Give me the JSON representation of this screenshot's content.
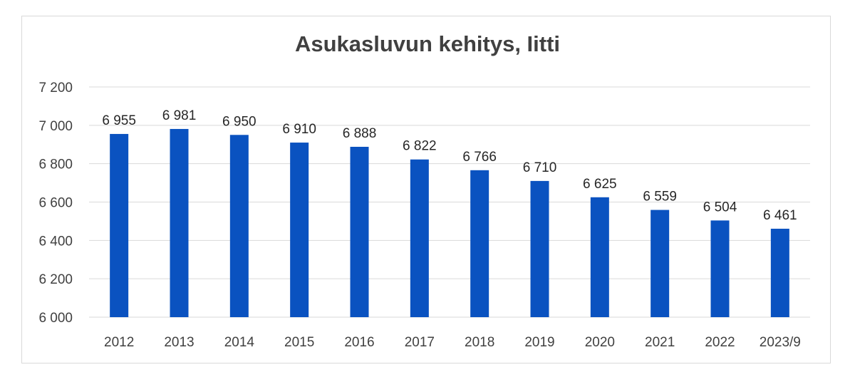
{
  "chart_data": {
    "type": "bar",
    "title": "Asukasluvun kehitys, Iitti",
    "xlabel": "",
    "ylabel": "",
    "categories": [
      "2012",
      "2013",
      "2014",
      "2015",
      "2016",
      "2017",
      "2018",
      "2019",
      "2020",
      "2021",
      "2022",
      "2023/9"
    ],
    "values": [
      6955,
      6981,
      6950,
      6910,
      6888,
      6822,
      6766,
      6710,
      6625,
      6559,
      6504,
      6461
    ],
    "value_labels": [
      "6 955",
      "6 981",
      "6 950",
      "6 910",
      "6 888",
      "6 822",
      "6 766",
      "6 710",
      "6 625",
      "6 559",
      "6 504",
      "6 461"
    ],
    "ylim": [
      6000,
      7200
    ],
    "yticks": [
      6000,
      6200,
      6400,
      6600,
      6800,
      7000,
      7200
    ],
    "ytick_labels": [
      "6 000",
      "6 200",
      "6 400",
      "6 600",
      "6 800",
      "7 000",
      "7 200"
    ],
    "grid": true,
    "legend": "none",
    "bar_color": "#0a52c0",
    "grid_color": "#d9d9d9"
  }
}
